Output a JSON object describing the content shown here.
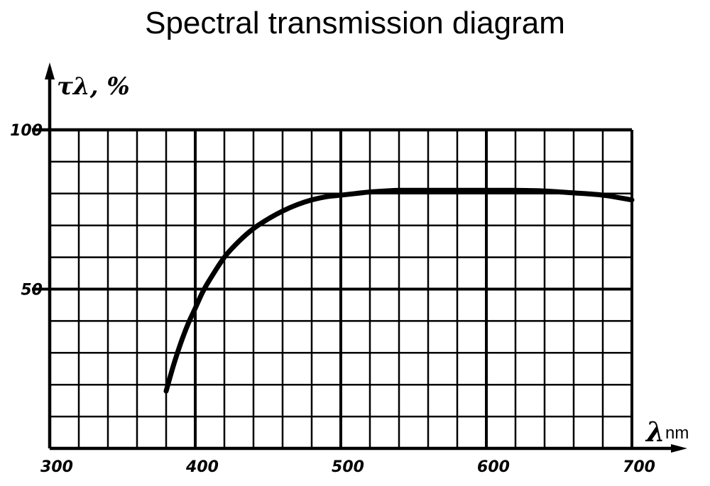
{
  "title": "Spectral transmission diagram",
  "chart_data": {
    "type": "line",
    "title": "Spectral transmission diagram",
    "xlabel": "λ, nm",
    "xlabel_symbol": "λ",
    "xlabel_unit": "nm",
    "ylabel": "τλ, %",
    "xlim": [
      300,
      700
    ],
    "ylim": [
      0,
      100
    ],
    "x_ticks": [
      300,
      400,
      500,
      600,
      700
    ],
    "y_ticks": [
      50,
      100
    ],
    "grid": true,
    "series": [
      {
        "x": [
          380,
          385,
          390,
          395,
          400,
          405,
          410,
          420,
          430,
          440,
          450,
          460,
          470,
          480,
          490,
          500,
          510,
          520,
          530,
          540,
          560,
          580,
          600,
          620,
          640,
          660,
          680,
          700
        ],
        "y": [
          18,
          26,
          33,
          39,
          44,
          49,
          53,
          60,
          65,
          69,
          72,
          74.5,
          76.5,
          78,
          79,
          79.5,
          80,
          80.5,
          80.8,
          81,
          81,
          81,
          81,
          81,
          80.8,
          80.2,
          79.5,
          78
        ]
      }
    ]
  }
}
